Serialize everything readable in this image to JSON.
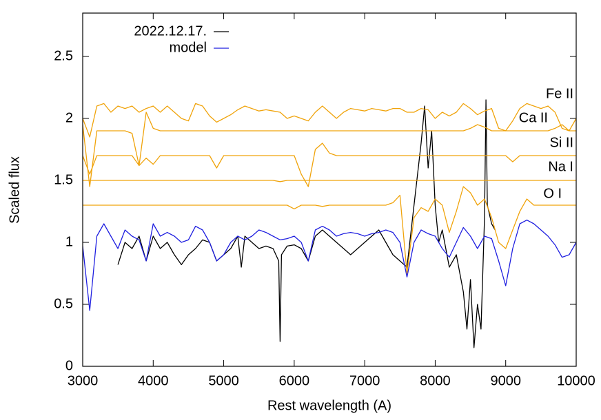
{
  "chart_data": {
    "type": "line",
    "xlabel": "Rest wavelength (A)",
    "ylabel": "Scaled flux",
    "xlim": [
      3000,
      10000
    ],
    "ylim": [
      0,
      2.85
    ],
    "xticks": [
      3000,
      4000,
      5000,
      6000,
      7000,
      8000,
      9000,
      10000
    ],
    "yticks": [
      0,
      0.5,
      1,
      1.5,
      2,
      2.5
    ],
    "grid": false,
    "legend": "top-left",
    "x": [
      3000,
      3100,
      3200,
      3300,
      3400,
      3500,
      3600,
      3700,
      3800,
      3900,
      4000,
      4100,
      4200,
      4300,
      4400,
      4500,
      4600,
      4700,
      4800,
      4900,
      5000,
      5100,
      5200,
      5300,
      5400,
      5500,
      5600,
      5700,
      5800,
      5900,
      6000,
      6100,
      6200,
      6300,
      6400,
      6500,
      6600,
      6700,
      6800,
      6900,
      7000,
      7100,
      7200,
      7300,
      7400,
      7500,
      7600,
      7700,
      7800,
      7900,
      8000,
      8100,
      8200,
      8300,
      8400,
      8500,
      8600,
      8700,
      8800,
      8900,
      9000,
      9100,
      9200,
      9300,
      9400,
      9500,
      9600,
      9700,
      9800,
      9900,
      10000
    ],
    "series": [
      {
        "name": "2022.12.17.",
        "color": "#000000",
        "label": "legend",
        "x": [
          3500,
          3600,
          3700,
          3800,
          3900,
          4000,
          4100,
          4200,
          4300,
          4400,
          4500,
          4600,
          4700,
          4800,
          4900,
          5000,
          5100,
          5200,
          5250,
          5300,
          5400,
          5500,
          5600,
          5700,
          5780,
          5800,
          5820,
          5900,
          6000,
          6100,
          6200,
          6300,
          6400,
          6500,
          6600,
          6700,
          6800,
          6900,
          7000,
          7100,
          7200,
          7300,
          7400,
          7500,
          7600,
          7700,
          7800,
          7850,
          7900,
          7950,
          8000,
          8050,
          8100,
          8200,
          8300,
          8400,
          8450,
          8500,
          8550,
          8600,
          8650,
          8700,
          8720,
          8740,
          8800,
          8850
        ],
        "values": [
          0.82,
          1.0,
          0.95,
          1.05,
          0.85,
          1.05,
          0.95,
          1.0,
          0.9,
          0.82,
          0.9,
          0.95,
          1.02,
          1.0,
          0.85,
          0.9,
          0.95,
          1.05,
          0.8,
          1.05,
          1.0,
          0.95,
          0.97,
          0.95,
          0.85,
          0.2,
          0.9,
          0.97,
          0.98,
          0.95,
          0.85,
          1.05,
          1.1,
          1.05,
          1.0,
          0.95,
          0.9,
          0.95,
          1.0,
          1.05,
          1.1,
          1.0,
          0.9,
          0.85,
          0.8,
          1.3,
          1.8,
          2.1,
          1.6,
          1.9,
          1.3,
          1.0,
          1.1,
          0.8,
          0.9,
          0.6,
          0.3,
          0.7,
          0.15,
          0.5,
          0.3,
          1.2,
          2.15,
          1.3,
          1.15,
          1.1
        ]
      },
      {
        "name": "model",
        "color": "#1f1fe0",
        "label": "legend",
        "values": [
          0.97,
          0.45,
          1.05,
          1.15,
          1.05,
          0.95,
          1.1,
          1.05,
          1.02,
          0.85,
          1.15,
          1.05,
          1.08,
          1.05,
          1.0,
          1.02,
          1.13,
          1.1,
          1.0,
          0.85,
          0.9,
          1.0,
          1.05,
          1.02,
          1.05,
          1.1,
          1.08,
          1.05,
          1.02,
          1.03,
          1.05,
          1.0,
          0.85,
          1.1,
          1.13,
          1.1,
          1.05,
          1.07,
          1.08,
          1.07,
          1.05,
          1.07,
          1.08,
          1.1,
          1.08,
          1.0,
          0.72,
          1.0,
          1.1,
          1.07,
          1.05,
          0.95,
          0.88,
          1.0,
          1.12,
          1.05,
          0.95,
          1.05,
          1.03,
          0.85,
          0.65,
          0.95,
          1.15,
          1.18,
          1.15,
          1.1,
          1.05,
          0.98,
          0.88,
          0.9,
          1.0
        ]
      },
      {
        "name": "Fe II",
        "color": "#f0a30a",
        "label": "end",
        "values": [
          2.0,
          1.85,
          2.1,
          2.12,
          2.05,
          2.1,
          2.08,
          2.1,
          2.05,
          2.08,
          2.1,
          2.05,
          2.1,
          2.05,
          2.0,
          1.98,
          2.12,
          2.1,
          2.02,
          1.97,
          2.0,
          2.03,
          2.07,
          2.1,
          2.08,
          2.06,
          2.07,
          2.06,
          2.05,
          2.0,
          2.02,
          2.0,
          1.98,
          2.05,
          2.1,
          2.05,
          2.0,
          2.05,
          2.08,
          2.07,
          2.06,
          2.08,
          2.07,
          2.06,
          2.08,
          2.08,
          2.05,
          2.05,
          2.08,
          2.07,
          2.0,
          2.05,
          2.02,
          2.05,
          2.12,
          2.08,
          2.03,
          2.06,
          2.08,
          1.92,
          1.9,
          1.98,
          2.08,
          2.12,
          2.1,
          2.08,
          2.1,
          2.05,
          1.92,
          1.9,
          2.0
        ]
      },
      {
        "name": "Ca II",
        "color": "#f0a30a",
        "label": "end",
        "values": [
          1.95,
          1.45,
          1.9,
          1.9,
          1.9,
          1.9,
          1.9,
          1.88,
          1.62,
          2.05,
          1.92,
          1.9,
          1.9,
          1.9,
          1.9,
          1.9,
          1.9,
          1.9,
          1.9,
          1.9,
          1.9,
          1.9,
          1.9,
          1.9,
          1.9,
          1.9,
          1.9,
          1.9,
          1.9,
          1.9,
          1.9,
          1.9,
          1.9,
          1.9,
          1.9,
          1.9,
          1.9,
          1.9,
          1.9,
          1.9,
          1.9,
          1.9,
          1.9,
          1.9,
          1.9,
          1.9,
          1.9,
          1.9,
          1.9,
          1.9,
          1.9,
          1.9,
          1.9,
          1.9,
          1.9,
          1.92,
          1.95,
          1.93,
          1.9,
          1.9,
          1.9,
          1.9,
          1.9,
          1.9,
          1.9,
          1.9,
          1.9,
          1.92,
          1.95,
          1.9,
          1.9
        ]
      },
      {
        "name": "Si II",
        "color": "#f0a30a",
        "label": "end",
        "values": [
          1.7,
          1.55,
          1.7,
          1.7,
          1.7,
          1.7,
          1.7,
          1.7,
          1.62,
          1.68,
          1.63,
          1.7,
          1.7,
          1.7,
          1.7,
          1.7,
          1.7,
          1.7,
          1.7,
          1.6,
          1.7,
          1.7,
          1.7,
          1.7,
          1.7,
          1.7,
          1.7,
          1.7,
          1.7,
          1.7,
          1.7,
          1.55,
          1.45,
          1.75,
          1.8,
          1.72,
          1.7,
          1.7,
          1.7,
          1.7,
          1.7,
          1.7,
          1.7,
          1.7,
          1.7,
          1.7,
          1.7,
          1.7,
          1.7,
          1.7,
          1.7,
          1.7,
          1.7,
          1.7,
          1.7,
          1.7,
          1.7,
          1.7,
          1.7,
          1.7,
          1.7,
          1.65,
          1.7,
          1.7,
          1.7,
          1.7,
          1.7,
          1.7,
          1.7,
          1.7,
          1.7
        ]
      },
      {
        "name": "Na I",
        "color": "#f0a30a",
        "label": "end",
        "values": [
          1.5,
          1.5,
          1.5,
          1.5,
          1.5,
          1.5,
          1.5,
          1.5,
          1.5,
          1.5,
          1.5,
          1.5,
          1.5,
          1.5,
          1.5,
          1.5,
          1.5,
          1.5,
          1.5,
          1.5,
          1.5,
          1.5,
          1.5,
          1.5,
          1.5,
          1.5,
          1.5,
          1.5,
          1.49,
          1.5,
          1.5,
          1.5,
          1.5,
          1.5,
          1.5,
          1.5,
          1.5,
          1.5,
          1.5,
          1.5,
          1.5,
          1.5,
          1.5,
          1.5,
          1.5,
          1.5,
          1.5,
          1.5,
          1.5,
          1.5,
          1.5,
          1.5,
          1.5,
          1.5,
          1.5,
          1.5,
          1.5,
          1.5,
          1.5,
          1.5,
          1.5,
          1.5,
          1.5,
          1.5,
          1.5,
          1.5,
          1.5,
          1.5,
          1.5,
          1.5,
          1.5
        ]
      },
      {
        "name": "O I",
        "color": "#f0a30a",
        "label": "end",
        "values": [
          1.3,
          1.3,
          1.3,
          1.3,
          1.3,
          1.3,
          1.3,
          1.3,
          1.3,
          1.3,
          1.3,
          1.3,
          1.3,
          1.3,
          1.3,
          1.3,
          1.3,
          1.3,
          1.3,
          1.3,
          1.3,
          1.3,
          1.3,
          1.3,
          1.3,
          1.3,
          1.3,
          1.3,
          1.3,
          1.3,
          1.27,
          1.3,
          1.3,
          1.3,
          1.29,
          1.3,
          1.3,
          1.3,
          1.3,
          1.3,
          1.3,
          1.3,
          1.3,
          1.3,
          1.32,
          1.38,
          0.75,
          1.2,
          1.28,
          1.25,
          1.35,
          1.3,
          1.08,
          1.25,
          1.45,
          1.4,
          1.3,
          1.35,
          1.2,
          1.0,
          0.95,
          1.1,
          1.25,
          1.35,
          1.3,
          1.3,
          1.3,
          1.3,
          1.3,
          1.3,
          1.3
        ]
      }
    ]
  }
}
